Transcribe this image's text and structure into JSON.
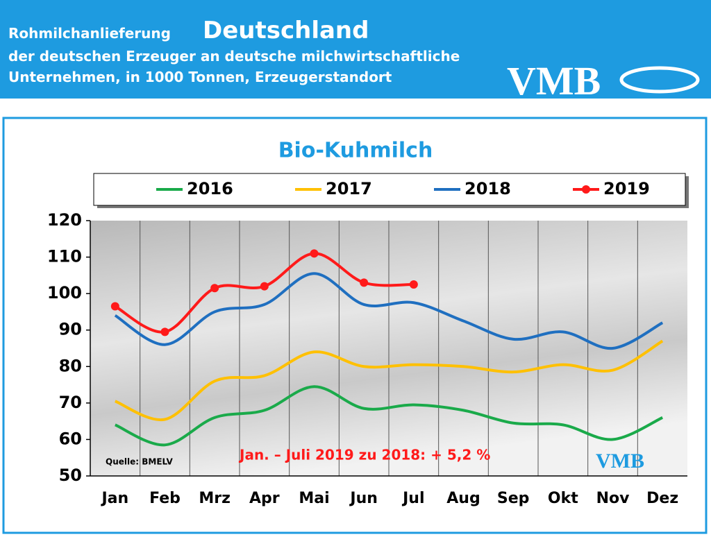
{
  "header": {
    "title_prefix": "Rohmilchanlieferung",
    "title_main": "Deutschland",
    "subtitle_lines": [
      "der deutschen Erzeuger an deutsche milchwirtschaftliche",
      "Unternehmen, in 1000 Tonnen, Erzeugerstandort"
    ],
    "logo": "VMB"
  },
  "chart_data": {
    "type": "line",
    "title": "Bio-Kuhmilch",
    "categories": [
      "Jan",
      "Feb",
      "Mrz",
      "Apr",
      "Mai",
      "Jun",
      "Jul",
      "Aug",
      "Sep",
      "Okt",
      "Nov",
      "Dez"
    ],
    "series": [
      {
        "name": "2016",
        "color": "#1aaa4a",
        "values": [
          64,
          58.5,
          66,
          68,
          74.5,
          68.5,
          69.5,
          68,
          64.5,
          64,
          60,
          66
        ]
      },
      {
        "name": "2017",
        "color": "#ffc000",
        "values": [
          70.5,
          65.5,
          76,
          77.5,
          84,
          80,
          80.5,
          80,
          78.5,
          80.5,
          79,
          87
        ]
      },
      {
        "name": "2018",
        "color": "#1f6fc0",
        "values": [
          94,
          86,
          95,
          97,
          105.5,
          97,
          97.5,
          92.5,
          87.5,
          89.5,
          85,
          92
        ]
      },
      {
        "name": "2019",
        "color": "#ff1a1a",
        "markers": true,
        "values": [
          96.5,
          89.5,
          101.5,
          102,
          111,
          103,
          102.5,
          null,
          null,
          null,
          null,
          null
        ]
      }
    ],
    "ylim": [
      50,
      120
    ],
    "yticks": [
      50,
      60,
      70,
      80,
      90,
      100,
      110,
      120
    ],
    "annotations": [
      "Quelle:  BMELV",
      "Jan. – Juli  2019 zu 2018: + 5,2 %"
    ]
  }
}
